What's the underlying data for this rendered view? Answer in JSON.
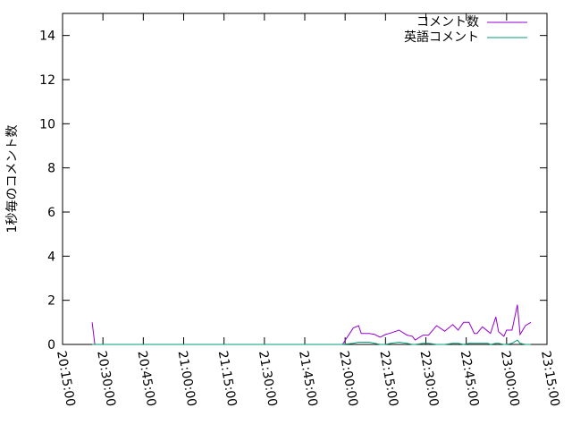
{
  "chart_data": {
    "type": "line",
    "title": "",
    "xlabel": "",
    "ylabel": "1秒毎のコメント数",
    "xlim": [
      "20:15:00",
      "23:15:00"
    ],
    "ylim": [
      0,
      15
    ],
    "x_ticks": [
      "20:15:00",
      "20:30:00",
      "20:45:00",
      "21:00:00",
      "21:15:00",
      "21:30:00",
      "21:45:00",
      "22:00:00",
      "22:15:00",
      "22:30:00",
      "22:45:00",
      "23:00:00",
      "23:15:00"
    ],
    "y_ticks": [
      0,
      2,
      4,
      6,
      8,
      10,
      12,
      14
    ],
    "grid": false,
    "legend_position": "top-right",
    "series": [
      {
        "name": "コメント数",
        "color": "#9400d3",
        "points": [
          [
            "20:26",
            1.0
          ],
          [
            "20:27",
            0
          ],
          [
            "20:28",
            0
          ],
          [
            "21:58",
            0
          ],
          [
            "21:59",
            0
          ],
          [
            "22:03",
            0.74
          ],
          [
            "22:05",
            0.85
          ],
          [
            "22:06",
            0.5
          ],
          [
            "22:09",
            0.5
          ],
          [
            "22:11",
            0.45
          ],
          [
            "22:13",
            0.33
          ],
          [
            "22:15",
            0.45
          ],
          [
            "22:17",
            0.52
          ],
          [
            "22:20",
            0.65
          ],
          [
            "22:23",
            0.42
          ],
          [
            "22:25",
            0.37
          ],
          [
            "22:26",
            0.2
          ],
          [
            "22:29",
            0.42
          ],
          [
            "22:31",
            0.42
          ],
          [
            "22:34",
            0.85
          ],
          [
            "22:37",
            0.6
          ],
          [
            "22:40",
            0.9
          ],
          [
            "22:42",
            0.65
          ],
          [
            "22:44",
            1.0
          ],
          [
            "22:46",
            1.0
          ],
          [
            "22:48",
            0.5
          ],
          [
            "22:49",
            0.5
          ],
          [
            "22:51",
            0.8
          ],
          [
            "22:53",
            0.6
          ],
          [
            "22:54",
            0.5
          ],
          [
            "22:56",
            1.25
          ],
          [
            "22:57",
            0.58
          ],
          [
            "22:59",
            0.37
          ],
          [
            "23:00",
            0.65
          ],
          [
            "23:02",
            0.65
          ],
          [
            "23:04",
            1.8
          ],
          [
            "23:05",
            0.45
          ],
          [
            "23:07",
            0.85
          ],
          [
            "23:09",
            1.0
          ]
        ]
      },
      {
        "name": "英語コメント",
        "color": "#009e73",
        "points": [
          [
            "20:26",
            0
          ],
          [
            "21:59",
            0
          ],
          [
            "22:03",
            0.05
          ],
          [
            "22:05",
            0.1
          ],
          [
            "22:06",
            0.1
          ],
          [
            "22:09",
            0.1
          ],
          [
            "22:11",
            0.05
          ],
          [
            "22:13",
            0
          ],
          [
            "22:15",
            0
          ],
          [
            "22:17",
            0.05
          ],
          [
            "22:20",
            0.1
          ],
          [
            "22:23",
            0.05
          ],
          [
            "22:25",
            0
          ],
          [
            "22:26",
            0
          ],
          [
            "22:29",
            0.05
          ],
          [
            "22:31",
            0.05
          ],
          [
            "22:34",
            0
          ],
          [
            "22:37",
            0
          ],
          [
            "22:40",
            0.05
          ],
          [
            "22:42",
            0.05
          ],
          [
            "22:44",
            0
          ],
          [
            "22:46",
            0.05
          ],
          [
            "22:48",
            0.05
          ],
          [
            "22:49",
            0.05
          ],
          [
            "22:51",
            0.05
          ],
          [
            "22:53",
            0.05
          ],
          [
            "22:54",
            0
          ],
          [
            "22:56",
            0.05
          ],
          [
            "22:57",
            0.05
          ],
          [
            "22:59",
            0
          ],
          [
            "23:00",
            0
          ],
          [
            "23:02",
            0.05
          ],
          [
            "23:04",
            0.2
          ],
          [
            "23:05",
            0.05
          ],
          [
            "23:07",
            0
          ],
          [
            "23:09",
            0
          ]
        ]
      }
    ]
  }
}
